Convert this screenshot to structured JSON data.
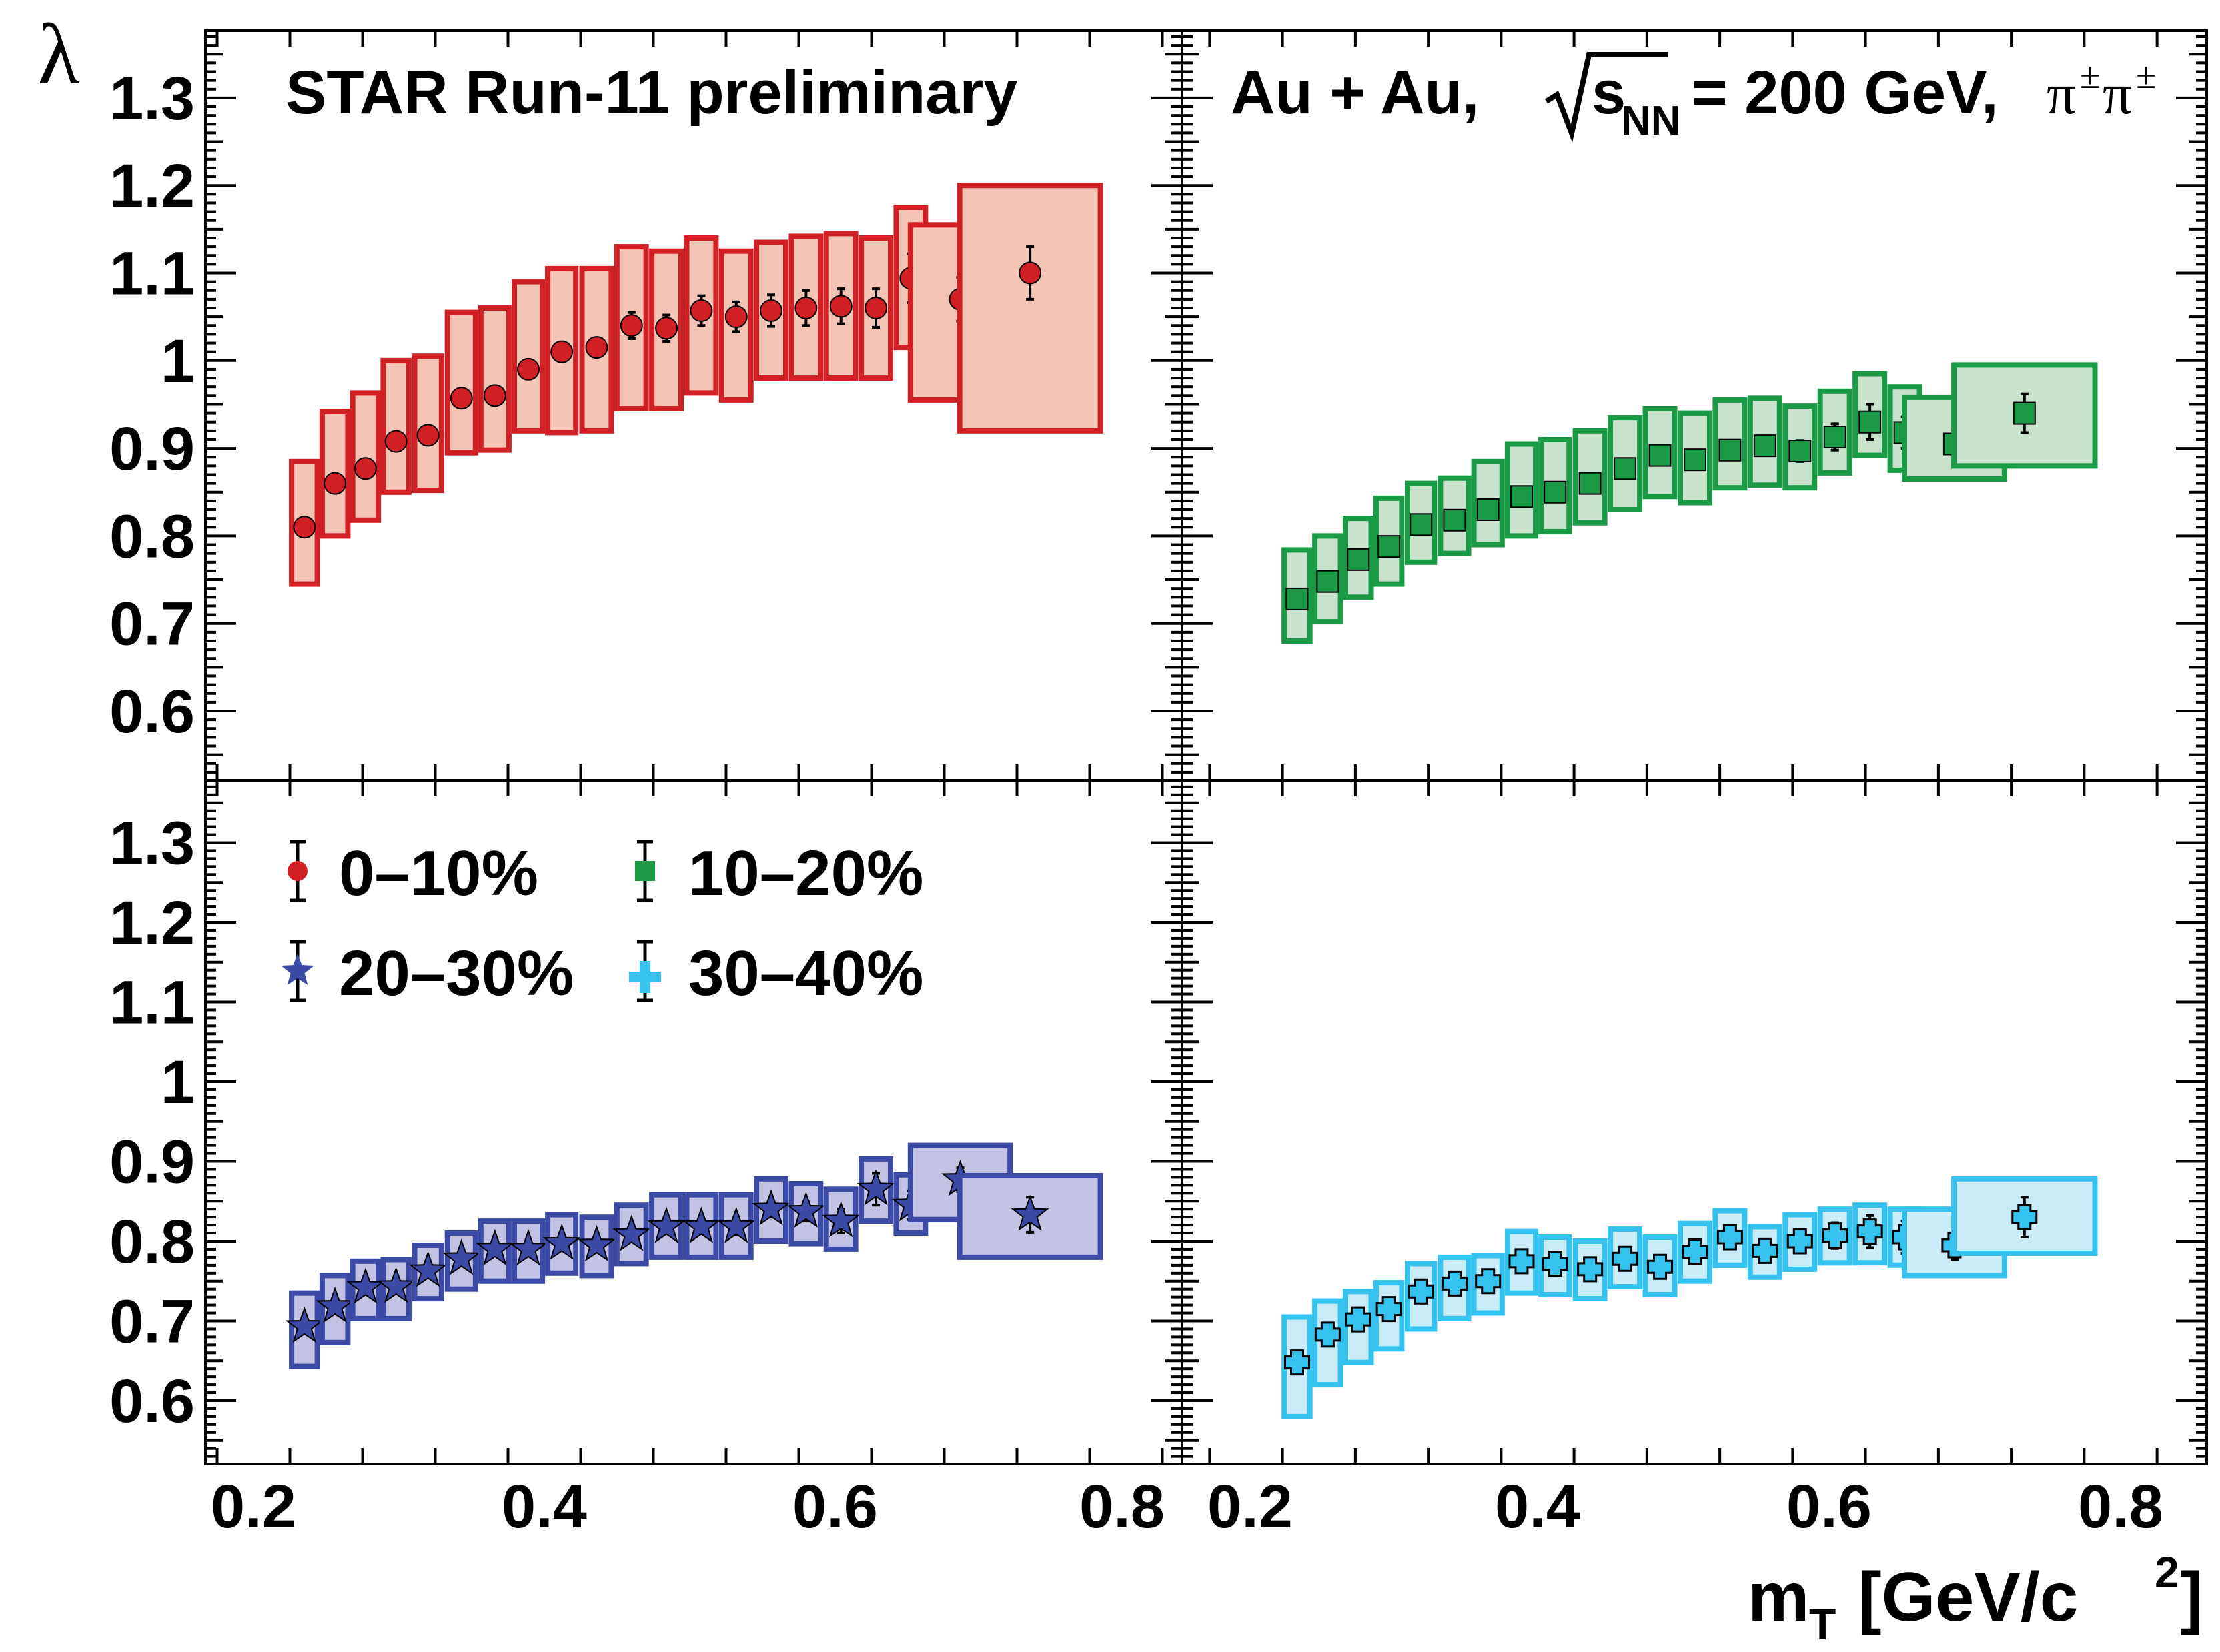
{
  "chart_data": {
    "type": "scatter",
    "title": "STAR Run-11 preliminary",
    "system_label": {
      "prefix": "Au + Au,",
      "sqrt_s": "s",
      "sqrt_s_sub": "NN",
      "energy": "= 200 GeV,",
      "pair": "π",
      "pair_sup1": "±",
      "pair_sup2": "±"
    },
    "ylabel": "λ",
    "xlabel": {
      "main": "m",
      "sub": "T",
      "unit": "[GeV/c",
      "sup": "2",
      "close": "]"
    },
    "xlim": [
      0.17,
      0.84
    ],
    "ylim": [
      0.525,
      1.375
    ],
    "x_ticks": [
      "0.2",
      "0.4",
      "0.6",
      "0.8"
    ],
    "y_ticks": [
      "0.6",
      "0.7",
      "0.8",
      "0.9",
      "1",
      "1.1",
      "1.2",
      "1.3"
    ],
    "legend": [
      {
        "label": "0–10%",
        "marker": "circle",
        "color": "#d11f26"
      },
      {
        "label": "10–20%",
        "marker": "square",
        "color": "#1a9a45"
      },
      {
        "label": "20–30%",
        "marker": "star",
        "color": "#3b4aa5"
      },
      {
        "label": "30–40%",
        "marker": "cross",
        "color": "#36c2ee"
      }
    ],
    "series": [
      {
        "name": "0–10%",
        "panel": "top-left",
        "marker": "circle",
        "color": "#d11f26",
        "box_fill": "#f4c4b4",
        "x": [
          0.235,
          0.256,
          0.277,
          0.298,
          0.32,
          0.343,
          0.366,
          0.389,
          0.412,
          0.436,
          0.46,
          0.484,
          0.508,
          0.532,
          0.556,
          0.58,
          0.604,
          0.628,
          0.652,
          0.686,
          0.734
        ],
        "values": [
          0.81,
          0.86,
          0.877,
          0.908,
          0.915,
          0.957,
          0.96,
          0.99,
          1.01,
          1.015,
          1.04,
          1.037,
          1.057,
          1.05,
          1.057,
          1.06,
          1.062,
          1.06,
          1.094,
          1.07,
          1.1
        ],
        "stat_err": [
          0.01,
          0.01,
          0.01,
          0.01,
          0.01,
          0.01,
          0.01,
          0.01,
          0.01,
          0.01,
          0.015,
          0.015,
          0.017,
          0.017,
          0.018,
          0.02,
          0.02,
          0.022,
          0.028,
          0.025,
          0.03
        ],
        "sys_lo": [
          0.745,
          0.8,
          0.818,
          0.85,
          0.852,
          0.895,
          0.898,
          0.92,
          0.918,
          0.92,
          0.945,
          0.945,
          0.963,
          0.955,
          0.98,
          0.98,
          0.98,
          0.98,
          1.015,
          0.955,
          0.92
        ],
        "sys_hi": [
          0.885,
          0.942,
          0.963,
          1.0,
          1.005,
          1.055,
          1.06,
          1.09,
          1.105,
          1.105,
          1.13,
          1.125,
          1.14,
          1.125,
          1.135,
          1.142,
          1.145,
          1.14,
          1.175,
          1.155,
          1.2
        ]
      },
      {
        "name": "10–20%",
        "panel": "top-right",
        "marker": "square",
        "color": "#1a9a45",
        "box_fill": "#c8e2cc",
        "x": [
          0.235,
          0.256,
          0.277,
          0.298,
          0.32,
          0.343,
          0.366,
          0.389,
          0.412,
          0.436,
          0.46,
          0.484,
          0.508,
          0.532,
          0.556,
          0.58,
          0.604,
          0.628,
          0.652,
          0.686,
          0.734
        ],
        "values": [
          0.728,
          0.748,
          0.773,
          0.788,
          0.813,
          0.818,
          0.83,
          0.845,
          0.85,
          0.86,
          0.877,
          0.892,
          0.887,
          0.898,
          0.903,
          0.897,
          0.913,
          0.93,
          0.918,
          0.905,
          0.94
        ],
        "stat_err": [
          0.005,
          0.005,
          0.005,
          0.005,
          0.005,
          0.005,
          0.005,
          0.005,
          0.005,
          0.005,
          0.007,
          0.007,
          0.008,
          0.01,
          0.01,
          0.012,
          0.015,
          0.02,
          0.018,
          0.015,
          0.022
        ],
        "sys_lo": [
          0.68,
          0.702,
          0.73,
          0.745,
          0.77,
          0.78,
          0.79,
          0.8,
          0.805,
          0.815,
          0.83,
          0.845,
          0.838,
          0.855,
          0.858,
          0.855,
          0.872,
          0.892,
          0.875,
          0.865,
          0.88
        ],
        "sys_hi": [
          0.784,
          0.8,
          0.82,
          0.843,
          0.86,
          0.866,
          0.885,
          0.905,
          0.91,
          0.92,
          0.935,
          0.945,
          0.94,
          0.955,
          0.957,
          0.948,
          0.965,
          0.985,
          0.97,
          0.958,
          0.995
        ]
      },
      {
        "name": "20–30%",
        "panel": "bottom-left",
        "marker": "star",
        "color": "#3b4aa5",
        "box_fill": "#c2c2e4",
        "x": [
          0.235,
          0.256,
          0.277,
          0.298,
          0.32,
          0.343,
          0.366,
          0.389,
          0.412,
          0.436,
          0.46,
          0.484,
          0.508,
          0.532,
          0.556,
          0.58,
          0.604,
          0.628,
          0.652,
          0.686,
          0.734
        ],
        "values": [
          0.693,
          0.718,
          0.742,
          0.743,
          0.763,
          0.778,
          0.79,
          0.79,
          0.797,
          0.795,
          0.808,
          0.818,
          0.818,
          0.818,
          0.84,
          0.837,
          0.825,
          0.865,
          0.845,
          0.877,
          0.833
        ],
        "stat_err": [
          0.005,
          0.005,
          0.005,
          0.005,
          0.005,
          0.005,
          0.005,
          0.005,
          0.005,
          0.005,
          0.007,
          0.007,
          0.008,
          0.01,
          0.01,
          0.012,
          0.015,
          0.02,
          0.018,
          0.015,
          0.022
        ],
        "sys_lo": [
          0.643,
          0.673,
          0.703,
          0.703,
          0.728,
          0.74,
          0.75,
          0.75,
          0.76,
          0.757,
          0.772,
          0.78,
          0.78,
          0.78,
          0.8,
          0.797,
          0.79,
          0.825,
          0.81,
          0.827,
          0.78
        ],
        "sys_hi": [
          0.735,
          0.757,
          0.775,
          0.777,
          0.795,
          0.81,
          0.825,
          0.825,
          0.833,
          0.83,
          0.845,
          0.858,
          0.858,
          0.858,
          0.878,
          0.872,
          0.865,
          0.903,
          0.883,
          0.92,
          0.882
        ]
      },
      {
        "name": "30–40%",
        "panel": "bottom-right",
        "marker": "cross",
        "color": "#36c2ee",
        "box_fill": "#c9ecf8",
        "x": [
          0.235,
          0.256,
          0.277,
          0.298,
          0.32,
          0.343,
          0.366,
          0.389,
          0.412,
          0.436,
          0.46,
          0.484,
          0.508,
          0.532,
          0.556,
          0.58,
          0.604,
          0.628,
          0.652,
          0.686,
          0.734
        ],
        "values": [
          0.648,
          0.683,
          0.702,
          0.715,
          0.737,
          0.747,
          0.75,
          0.775,
          0.772,
          0.765,
          0.778,
          0.768,
          0.787,
          0.805,
          0.788,
          0.8,
          0.807,
          0.812,
          0.805,
          0.795,
          0.83
        ],
        "stat_err": [
          0.006,
          0.006,
          0.006,
          0.006,
          0.006,
          0.006,
          0.006,
          0.006,
          0.006,
          0.006,
          0.008,
          0.008,
          0.01,
          0.012,
          0.012,
          0.014,
          0.016,
          0.02,
          0.02,
          0.018,
          0.025
        ],
        "sys_lo": [
          0.58,
          0.62,
          0.648,
          0.665,
          0.69,
          0.703,
          0.71,
          0.735,
          0.733,
          0.728,
          0.743,
          0.733,
          0.75,
          0.77,
          0.755,
          0.765,
          0.773,
          0.773,
          0.77,
          0.757,
          0.785
        ],
        "sys_hi": [
          0.705,
          0.725,
          0.737,
          0.748,
          0.772,
          0.78,
          0.782,
          0.812,
          0.805,
          0.8,
          0.815,
          0.805,
          0.822,
          0.838,
          0.818,
          0.833,
          0.84,
          0.845,
          0.84,
          0.84,
          0.878
        ]
      }
    ]
  }
}
